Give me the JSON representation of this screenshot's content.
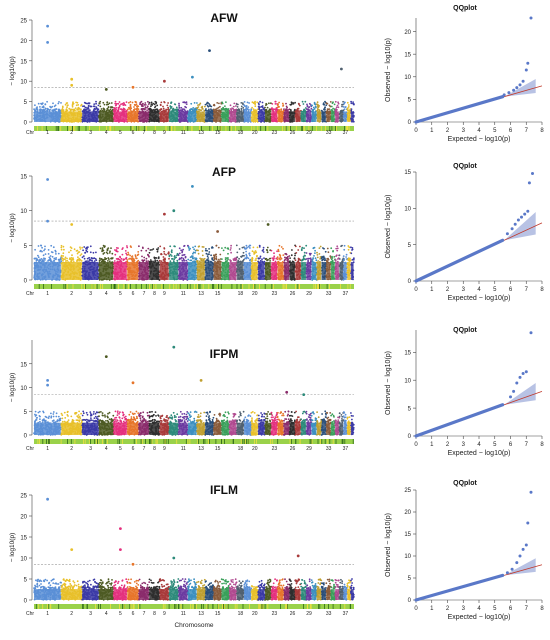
{
  "chart_data": [
    {
      "type": "scatter",
      "kind": "manhattan",
      "title": "AFW",
      "ylabel": "− log10(p)",
      "xlabel": "",
      "ylim": [
        0,
        25
      ],
      "yticks": [
        0,
        5,
        10,
        15,
        20,
        25
      ],
      "threshold": 8.5,
      "chromosome_labels": [
        "Chr",
        "1",
        "2",
        "3",
        "4",
        "5",
        "6",
        "7",
        "8",
        "9",
        "11",
        "13",
        "15",
        "18",
        "20",
        "23",
        "26",
        "29",
        "33",
        "37"
      ],
      "peaks": [
        {
          "chr": 1,
          "value": 23.5
        },
        {
          "chr": 1,
          "value": 19.5
        },
        {
          "chr": 2,
          "value": 10.5
        },
        {
          "chr": 2,
          "value": 9.0
        },
        {
          "chr": 4,
          "value": 8.0
        },
        {
          "chr": 6,
          "value": 8.5
        },
        {
          "chr": 9,
          "value": 10.0
        },
        {
          "chr": 12,
          "value": 11.0
        },
        {
          "chr": 14,
          "value": 17.5
        },
        {
          "chr": 36,
          "value": 13.0
        }
      ]
    },
    {
      "type": "scatter",
      "kind": "qqplot",
      "title": "QQplot",
      "xlabel": "Expected  − log10(p)",
      "ylabel": "Observed  − log10(p)",
      "xlim": [
        0,
        8
      ],
      "ylim": [
        0,
        23
      ],
      "xticks": [
        0,
        1,
        2,
        3,
        4,
        5,
        6,
        7,
        8
      ],
      "yticks": [
        0,
        5,
        10,
        15,
        20
      ],
      "tail": [
        {
          "x": 5.6,
          "y": 6.0
        },
        {
          "x": 5.9,
          "y": 6.5
        },
        {
          "x": 6.2,
          "y": 7.0
        },
        {
          "x": 6.4,
          "y": 7.6
        },
        {
          "x": 6.6,
          "y": 8.2
        },
        {
          "x": 6.8,
          "y": 9.0
        },
        {
          "x": 7.0,
          "y": 11.5
        },
        {
          "x": 7.1,
          "y": 13.0
        },
        {
          "x": 7.3,
          "y": 23.0
        }
      ]
    },
    {
      "type": "scatter",
      "kind": "manhattan",
      "title": "AFP",
      "ylabel": "− log10(p)",
      "xlabel": "",
      "ylim": [
        0,
        15
      ],
      "yticks": [
        0,
        5,
        10,
        15
      ],
      "threshold": 8.5,
      "chromosome_labels": [
        "Chr",
        "1",
        "2",
        "3",
        "4",
        "5",
        "6",
        "7",
        "8",
        "9",
        "11",
        "13",
        "15",
        "18",
        "20",
        "23",
        "26",
        "29",
        "33",
        "37"
      ],
      "peaks": [
        {
          "chr": 1,
          "value": 14.5
        },
        {
          "chr": 1,
          "value": 8.5
        },
        {
          "chr": 2,
          "value": 8.0
        },
        {
          "chr": 9,
          "value": 9.5
        },
        {
          "chr": 10,
          "value": 10.0
        },
        {
          "chr": 12,
          "value": 13.5
        },
        {
          "chr": 15,
          "value": 7.0
        },
        {
          "chr": 22,
          "value": 8.0
        }
      ]
    },
    {
      "type": "scatter",
      "kind": "qqplot",
      "title": "QQplot",
      "xlabel": "Expected  − log10(p)",
      "ylabel": "Observed  − log10(p)",
      "xlim": [
        0,
        8
      ],
      "ylim": [
        0,
        15
      ],
      "xticks": [
        0,
        1,
        2,
        3,
        4,
        5,
        6,
        7,
        8
      ],
      "yticks": [
        0,
        5,
        10,
        15
      ],
      "tail": [
        {
          "x": 5.8,
          "y": 6.5
        },
        {
          "x": 6.1,
          "y": 7.2
        },
        {
          "x": 6.3,
          "y": 7.8
        },
        {
          "x": 6.5,
          "y": 8.4
        },
        {
          "x": 6.7,
          "y": 8.8
        },
        {
          "x": 6.9,
          "y": 9.2
        },
        {
          "x": 7.1,
          "y": 9.6
        },
        {
          "x": 7.2,
          "y": 13.5
        },
        {
          "x": 7.4,
          "y": 14.8
        }
      ]
    },
    {
      "type": "scatter",
      "kind": "manhattan",
      "title": "IFPM",
      "ylabel": "− log10(p)",
      "xlabel": "",
      "ylim": [
        0,
        20
      ],
      "yticks": [
        0,
        5,
        10,
        15
      ],
      "threshold": 8.5,
      "chromosome_labels": [
        "Chr",
        "1",
        "2",
        "3",
        "4",
        "5",
        "6",
        "7",
        "8",
        "9",
        "11",
        "13",
        "15",
        "18",
        "20",
        "23",
        "26",
        "29",
        "33",
        "37"
      ],
      "peaks": [
        {
          "chr": 1,
          "value": 10.5
        },
        {
          "chr": 1,
          "value": 11.5
        },
        {
          "chr": 4,
          "value": 16.5
        },
        {
          "chr": 6,
          "value": 11.0
        },
        {
          "chr": 10,
          "value": 18.5
        },
        {
          "chr": 13,
          "value": 11.5
        },
        {
          "chr": 25,
          "value": 9.0
        },
        {
          "chr": 28,
          "value": 8.5
        }
      ]
    },
    {
      "type": "scatter",
      "kind": "qqplot",
      "title": "QQplot",
      "xlabel": "Expected  − log10(p)",
      "ylabel": "Observed  − log10(p)",
      "xlim": [
        0,
        8
      ],
      "ylim": [
        0,
        19
      ],
      "xticks": [
        0,
        1,
        2,
        3,
        4,
        5,
        6,
        7,
        8
      ],
      "yticks": [
        0,
        5,
        10,
        15
      ],
      "tail": [
        {
          "x": 6.0,
          "y": 7.0
        },
        {
          "x": 6.2,
          "y": 8.0
        },
        {
          "x": 6.4,
          "y": 9.5
        },
        {
          "x": 6.6,
          "y": 10.5
        },
        {
          "x": 6.8,
          "y": 11.2
        },
        {
          "x": 7.0,
          "y": 11.5
        },
        {
          "x": 7.3,
          "y": 18.5
        }
      ]
    },
    {
      "type": "scatter",
      "kind": "manhattan",
      "title": "IFLM",
      "ylabel": "− log10(p)",
      "xlabel": "Chromosome",
      "ylim": [
        0,
        25
      ],
      "yticks": [
        0,
        5,
        10,
        15,
        20,
        25
      ],
      "threshold": 8.5,
      "chromosome_labels": [
        "Chr",
        "1",
        "2",
        "3",
        "4",
        "5",
        "6",
        "7",
        "8",
        "9",
        "11",
        "13",
        "15",
        "18",
        "20",
        "23",
        "26",
        "29",
        "33",
        "37"
      ],
      "peaks": [
        {
          "chr": 1,
          "value": 24.0
        },
        {
          "chr": 2,
          "value": 12.0
        },
        {
          "chr": 5,
          "value": 17.0
        },
        {
          "chr": 5,
          "value": 12.0
        },
        {
          "chr": 6,
          "value": 8.5
        },
        {
          "chr": 10,
          "value": 10.0
        },
        {
          "chr": 27,
          "value": 10.5
        }
      ]
    },
    {
      "type": "scatter",
      "kind": "qqplot",
      "title": "QQplot",
      "xlabel": "Expected  − log10(p)",
      "ylabel": "Observed  − log10(p)",
      "xlim": [
        0,
        8
      ],
      "ylim": [
        0,
        25
      ],
      "xticks": [
        0,
        1,
        2,
        3,
        4,
        5,
        6,
        7,
        8
      ],
      "yticks": [
        0,
        5,
        10,
        15,
        20,
        25
      ],
      "tail": [
        {
          "x": 5.8,
          "y": 6.2
        },
        {
          "x": 6.1,
          "y": 7.0
        },
        {
          "x": 6.4,
          "y": 8.5
        },
        {
          "x": 6.6,
          "y": 10.0
        },
        {
          "x": 6.8,
          "y": 11.5
        },
        {
          "x": 7.0,
          "y": 12.5
        },
        {
          "x": 7.1,
          "y": 17.5
        },
        {
          "x": 7.3,
          "y": 24.5
        }
      ]
    }
  ],
  "colors": {
    "palette": [
      "#5a8fd6",
      "#e8c02a",
      "#3b3aa6",
      "#4d5a23",
      "#e4307e",
      "#e6752a",
      "#8a2c6b",
      "#2e2e2e",
      "#a83a3a",
      "#2d8a7a",
      "#6b3aa0",
      "#3c8fbf",
      "#c0a030",
      "#2a4f7a",
      "#8a5a3a",
      "#3aa05a",
      "#b04a90",
      "#506070"
    ],
    "threshold_line": "#999999",
    "qq_points": "#5a78c8",
    "qq_line": "#c0392b",
    "qq_band": "#9aa8d8",
    "chr_bar_base": "#9ad24a",
    "chr_bar_dense": "#f0e040"
  }
}
